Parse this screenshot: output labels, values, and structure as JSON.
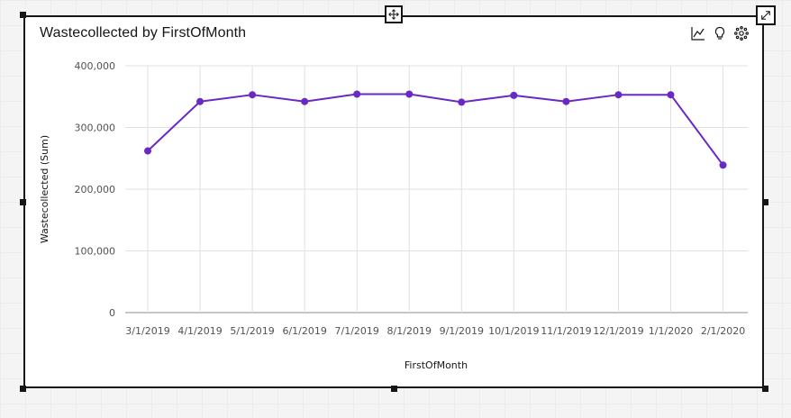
{
  "widget": {
    "title": "Wastecollected by FirstOfMonth"
  },
  "toolbar": {
    "icons": [
      "line-chart-icon",
      "lightbulb-icon",
      "settings-icon"
    ]
  },
  "colors": {
    "series": "#6929c4",
    "grid": "#e0e0e0",
    "border": "#161616"
  },
  "chart_data": {
    "type": "line",
    "xlabel": "FirstOfMonth",
    "ylabel": "Wastecollected (Sum)",
    "ylim": [
      0,
      400000
    ],
    "yticks": [
      0,
      100000,
      200000,
      300000,
      400000
    ],
    "ytick_labels": [
      "0",
      "100,000",
      "200,000",
      "300,000",
      "400,000"
    ],
    "categories": [
      "3/1/2019",
      "4/1/2019",
      "5/1/2019",
      "6/1/2019",
      "7/1/2019",
      "8/1/2019",
      "9/1/2019",
      "10/1/2019",
      "11/1/2019",
      "12/1/2019",
      "1/1/2020",
      "2/1/2020"
    ],
    "series": [
      {
        "values": [
          262000,
          342000,
          353000,
          342000,
          354000,
          354000,
          341000,
          352000,
          342000,
          353000,
          353000,
          239000
        ]
      }
    ],
    "grid": true
  }
}
